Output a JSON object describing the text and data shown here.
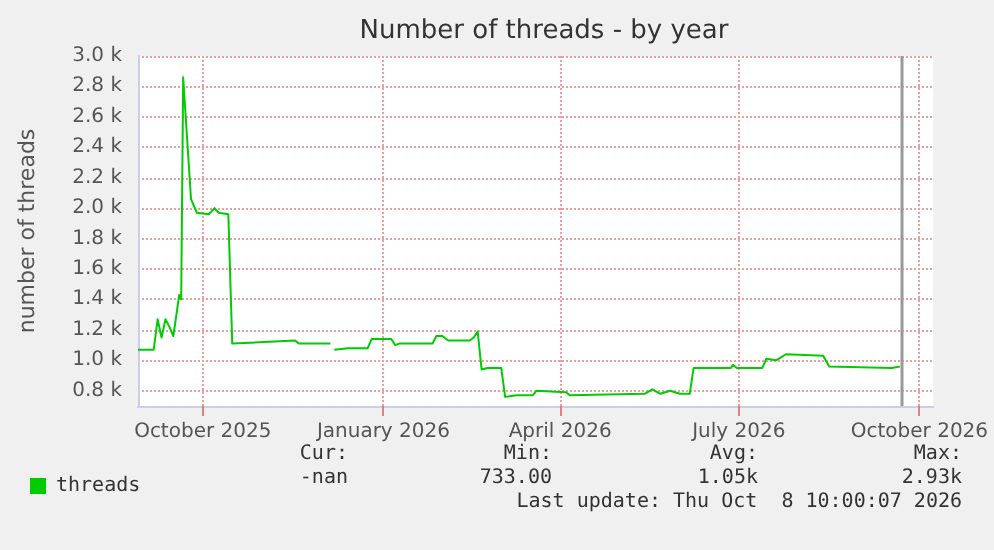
{
  "chart_data": {
    "type": "line",
    "title": "Number of threads - by year",
    "ylabel": "number of threads",
    "x": [
      "2025-08-29",
      "2025-09-06",
      "2025-09-08",
      "2025-09-10",
      "2025-09-12",
      "2025-09-14",
      "2025-09-16",
      "2025-09-19",
      "2025-09-20",
      "2025-09-21",
      "2025-09-25",
      "2025-09-28",
      "2025-10-04",
      "2025-10-07",
      "2025-10-09",
      "2025-10-14",
      "2025-10-16",
      "2025-11-17",
      "2025-11-19",
      "2025-12-05",
      "2025-12-06",
      "2025-12-07",
      "2025-12-14",
      "2025-12-24",
      "2025-12-26",
      "2026-01-05",
      "2026-01-07",
      "2026-01-09",
      "2026-01-26",
      "2026-01-28",
      "2026-01-31",
      "2026-02-03",
      "2026-02-14",
      "2026-02-16",
      "2026-02-18",
      "2026-02-20",
      "2026-02-23",
      "2026-03-02",
      "2026-03-04",
      "2026-03-10",
      "2026-03-18",
      "2026-03-20",
      "2026-04-04",
      "2026-04-06",
      "2026-05-14",
      "2026-05-18",
      "2026-05-22",
      "2026-05-27",
      "2026-06-01",
      "2026-06-06",
      "2026-06-08",
      "2026-06-27",
      "2026-06-28",
      "2026-06-30",
      "2026-07-13",
      "2026-07-15",
      "2026-07-20",
      "2026-07-25",
      "2026-08-13",
      "2026-08-16",
      "2026-09-17",
      "2026-09-21"
    ],
    "series": [
      {
        "name": "threads",
        "color": "#00cc00",
        "values": [
          1.07,
          1.07,
          1.27,
          1.15,
          1.27,
          1.22,
          1.16,
          1.43,
          1.4,
          2.86,
          2.06,
          1.97,
          1.96,
          2.0,
          1.97,
          1.96,
          1.11,
          1.13,
          1.11,
          1.11,
          null,
          1.07,
          1.08,
          1.08,
          1.14,
          1.14,
          1.1,
          1.11,
          1.11,
          1.16,
          1.16,
          1.13,
          1.13,
          1.15,
          1.19,
          0.94,
          0.95,
          0.95,
          0.76,
          0.77,
          0.77,
          0.8,
          0.79,
          0.77,
          0.78,
          0.81,
          0.78,
          0.8,
          0.78,
          0.78,
          0.95,
          0.95,
          0.97,
          0.95,
          0.95,
          1.01,
          1.0,
          1.04,
          1.03,
          0.96,
          0.95,
          0.96
        ]
      }
    ],
    "xlim": [
      "2025-08-29",
      "2026-10-08"
    ],
    "xticks": [
      {
        "value": "2025-10-01",
        "label": "October 2025"
      },
      {
        "value": "2026-01-01",
        "label": "January 2026"
      },
      {
        "value": "2026-04-01",
        "label": "April 2026"
      },
      {
        "value": "2026-07-01",
        "label": "July 2026"
      },
      {
        "value": "2026-10-01",
        "label": "October 2026"
      }
    ],
    "ylim": [
      0.7,
      3.0
    ],
    "yticks": [
      {
        "value": 0.8,
        "label": "0.8 k"
      },
      {
        "value": 1.0,
        "label": "1.0 k"
      },
      {
        "value": 1.2,
        "label": "1.2 k"
      },
      {
        "value": 1.4,
        "label": "1.4 k"
      },
      {
        "value": 1.6,
        "label": "1.6 k"
      },
      {
        "value": 1.8,
        "label": "1.8 k"
      },
      {
        "value": 2.0,
        "label": "2.0 k"
      },
      {
        "value": 2.2,
        "label": "2.2 k"
      },
      {
        "value": 2.4,
        "label": "2.4 k"
      },
      {
        "value": 2.6,
        "label": "2.6 k"
      },
      {
        "value": 2.8,
        "label": "2.8 k"
      },
      {
        "value": 3.0,
        "label": "3.0 k"
      }
    ],
    "ref_lines": [
      {
        "axis": "x",
        "value": "2026-09-22",
        "color": "#999999"
      }
    ],
    "grid": true,
    "legend": "bottom left",
    "marker": "none",
    "line_style": "solid",
    "annotations": [
      "Cur:",
      "Min:",
      "Avg:",
      "Max:",
      "-nan",
      "733.00",
      "1.05k",
      "2.93k",
      "Last update: Thu Oct  8 10:00:07 2026"
    ]
  }
}
